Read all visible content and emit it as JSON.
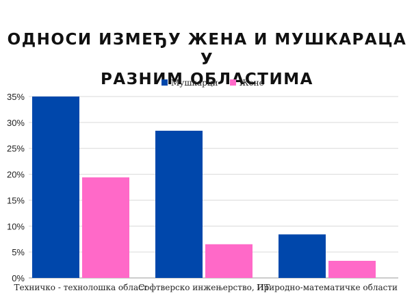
{
  "chart_data": {
    "type": "bar",
    "title_lines": [
      "ОДНОСИ ИЗМЕЂУ ЖЕНА И МУШКАРАЦА У",
      "РАЗНИМ ОБЛАСТИМА"
    ],
    "categories": [
      "Техничко - технолошка област",
      "Софтверско инжењерство, ИТ",
      "Природно-математичке области"
    ],
    "series": [
      {
        "name": "Мушкарци",
        "color": "#0047AB",
        "values": [
          35,
          28.4,
          8.4
        ]
      },
      {
        "name": "Жене",
        "color": "#FF69C8",
        "values": [
          19.4,
          6.5,
          3.3
        ]
      }
    ],
    "ylim": [
      0,
      35
    ],
    "yticks": [
      "0%",
      "5%",
      "10%",
      "15%",
      "20%",
      "25%",
      "30%",
      "35%"
    ],
    "ytick_values": [
      0,
      5,
      10,
      15,
      20,
      25,
      30,
      35
    ],
    "legend_position": "top-center",
    "grid": true,
    "xlabel": "",
    "ylabel": ""
  }
}
